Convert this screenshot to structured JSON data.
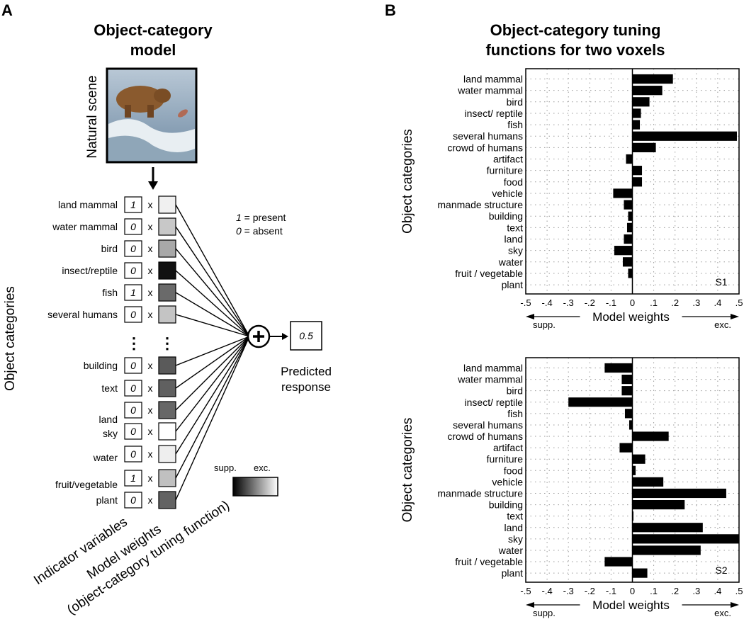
{
  "panel_a": {
    "letter": "A",
    "title_line1": "Object-category",
    "title_line2": "model",
    "scene_label": "Natural scene",
    "side_label": "Object categories",
    "categories": [
      {
        "label": "land mammal",
        "indicator": "1",
        "weight_color": "#f0f0f0"
      },
      {
        "label": "water mammal",
        "indicator": "0",
        "weight_color": "#c8c8c8"
      },
      {
        "label": "bird",
        "indicator": "0",
        "weight_color": "#a8a8a8"
      },
      {
        "label": "insect/reptile",
        "indicator": "0",
        "weight_color": "#111111"
      },
      {
        "label": "fish",
        "indicator": "1",
        "weight_color": "#6a6a6a"
      },
      {
        "label": "several humans",
        "indicator": "0",
        "weight_color": "#c4c4c4"
      },
      {
        "label": "building",
        "indicator": "0",
        "weight_color": "#5a5a5a"
      },
      {
        "label": "text",
        "indicator": "0",
        "weight_color": "#606060"
      },
      {
        "label": "land",
        "indicator": "0",
        "weight_color": "#676767"
      },
      {
        "label": "sky",
        "indicator": "0",
        "weight_color": "#ffffff"
      },
      {
        "label": "water",
        "indicator": "0",
        "weight_color": "#eeeeee"
      },
      {
        "label": "fruit/vegetable",
        "indicator": "1",
        "weight_color": "#c0c0c0"
      },
      {
        "label": "plant",
        "indicator": "0",
        "weight_color": "#636363"
      }
    ],
    "times": "x",
    "ellipsis": "⋮",
    "legend_present": "1 = present",
    "legend_absent": "0 = absent",
    "legend_present_num": "1",
    "legend_present_text": " = present",
    "legend_absent_num": "0",
    "legend_absent_text": " = absent",
    "output_value": "0.5",
    "predicted_line1": "Predicted",
    "predicted_line2": "response",
    "colorbar_supp": "supp.",
    "colorbar_exc": "exc.",
    "bottom_label_1": "Indicator variables",
    "bottom_label_2": "Model weights",
    "bottom_label_3": "(object-category tuning function)"
  },
  "panel_b": {
    "letter": "B",
    "title_line1": "Object-category tuning",
    "title_line2": "functions for two voxels"
  },
  "chart_data": [
    {
      "type": "bar",
      "orientation": "horizontal",
      "voxel_label": "S1",
      "ylabel": "Object categories",
      "xlabel": "Model weights",
      "x_left_label": "supp.",
      "x_right_label": "exc.",
      "xlim": [
        -0.5,
        0.5
      ],
      "xticks": [
        "-.5",
        "-.4",
        "-.3",
        "-.2",
        "-.1",
        "0",
        ".1",
        ".2",
        ".3",
        ".4",
        ".5"
      ],
      "grid": true,
      "categories": [
        "land mammal",
        "water mammal",
        "bird",
        "insect/ reptile",
        "fish",
        "several humans",
        "crowd of humans",
        "artifact",
        "furniture",
        "food",
        "vehicle",
        "manmade structure",
        "building",
        "text",
        "land",
        "sky",
        "water",
        "fruit / vegetable",
        "plant"
      ],
      "values": [
        0.19,
        0.14,
        0.08,
        0.04,
        0.035,
        0.49,
        0.11,
        -0.03,
        0.045,
        0.045,
        -0.09,
        -0.04,
        -0.02,
        -0.025,
        -0.04,
        -0.085,
        -0.045,
        -0.02,
        0.0
      ]
    },
    {
      "type": "bar",
      "orientation": "horizontal",
      "voxel_label": "S2",
      "ylabel": "Object categories",
      "xlabel": "Model weights",
      "x_left_label": "supp.",
      "x_right_label": "exc.",
      "xlim": [
        -0.5,
        0.5
      ],
      "xticks": [
        "-.5",
        "-.4",
        "-.3",
        "-.2",
        "-.1",
        "0",
        ".1",
        ".2",
        ".3",
        ".4",
        ".5"
      ],
      "grid": true,
      "categories": [
        "land mammal",
        "water mammal",
        "bird",
        "insect/ reptile",
        "fish",
        "several humans",
        "crowd of humans",
        "artifact",
        "furniture",
        "food",
        "vehicle",
        "manmade structure",
        "building",
        "text",
        "land",
        "sky",
        "water",
        "fruit / vegetable",
        "plant"
      ],
      "values": [
        -0.13,
        -0.05,
        -0.05,
        -0.3,
        -0.035,
        -0.015,
        0.17,
        -0.06,
        0.06,
        0.015,
        0.145,
        0.44,
        0.245,
        0.005,
        0.33,
        0.5,
        0.32,
        -0.13,
        0.07
      ]
    }
  ]
}
